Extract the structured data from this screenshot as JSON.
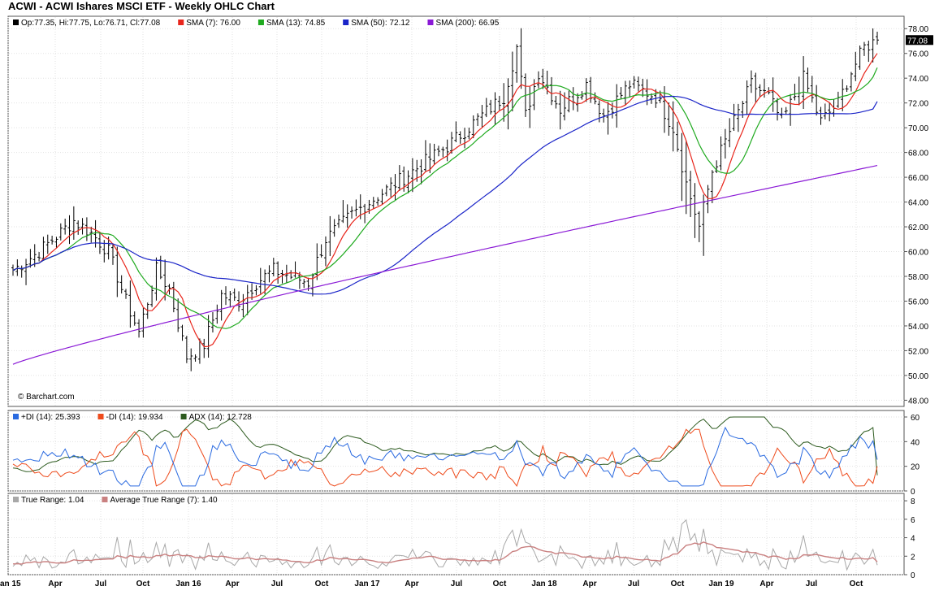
{
  "header": {
    "title": "ACWI - ACWI Ishares MSCI ETF - Weekly OHLC Chart"
  },
  "watermark": "© Barchart.com",
  "colors": {
    "ohlc": "#000000",
    "sma7": "#e8251b",
    "sma13": "#1faa1f",
    "sma50": "#1a24c8",
    "sma200": "#8a19d6",
    "pdi": "#2a6ae0",
    "mdi": "#ee4b1c",
    "adx": "#2c5a1e",
    "tr": "#a8a8a8",
    "atr": "#c98080"
  },
  "legend_main": [
    {
      "label": "Op:77.35, Hi:77.75, Lo:76.71, Cl:77.08",
      "color": "#000000"
    },
    {
      "label": "SMA (7): 76.00",
      "color": "#e8251b"
    },
    {
      "label": "SMA (13): 74.85",
      "color": "#1faa1f"
    },
    {
      "label": "SMA (50): 72.12",
      "color": "#1a24c8"
    },
    {
      "label": "SMA (200): 66.95",
      "color": "#8a19d6"
    }
  ],
  "legend_dmi": [
    {
      "label": "+DI (14): 25.393",
      "color": "#2a6ae0"
    },
    {
      "label": "-DI (14): 19.934",
      "color": "#ee4b1c"
    },
    {
      "label": "ADX (14): 12.728",
      "color": "#2c5a1e"
    }
  ],
  "legend_tr": [
    {
      "label": "True Range: 1.04",
      "color": "#a8a8a8"
    },
    {
      "label": "Average True Range (7): 1.40",
      "color": "#c98080"
    }
  ],
  "last_price_label": "77.08",
  "chart_data": {
    "type": "ohlc",
    "x_labels": [
      "Jan 15",
      "Apr",
      "Jul",
      "Oct",
      "Jan 16",
      "Apr",
      "Jul",
      "Oct",
      "Jan 17",
      "Apr",
      "Jul",
      "Oct",
      "Jan 18",
      "Apr",
      "Jul",
      "Oct",
      "Jan 19",
      "Apr",
      "Jul",
      "Oct"
    ],
    "price_axis": {
      "ticks": [
        "78.00",
        "76.00",
        "74.00",
        "72.00",
        "70.00",
        "68.00",
        "66.00",
        "64.00",
        "62.00",
        "60.00",
        "58.00",
        "56.00",
        "54.00",
        "52.00",
        "50.00",
        "48.00"
      ],
      "ylim": [
        47.5,
        79.0
      ]
    },
    "dmi_axis": {
      "ticks": [
        "60",
        "40",
        "20",
        "0"
      ],
      "ylim": [
        0,
        60
      ]
    },
    "tr_axis": {
      "ticks": [
        "8",
        "6",
        "4",
        "2",
        "0"
      ],
      "ylim": [
        0,
        8
      ]
    },
    "close_keypoints": [
      [
        0,
        58.5
      ],
      [
        6,
        60.0
      ],
      [
        14,
        62.5
      ],
      [
        18,
        61.5
      ],
      [
        22,
        60.0
      ],
      [
        26,
        56.0
      ],
      [
        29,
        53.5
      ],
      [
        33,
        58.5
      ],
      [
        36,
        57.0
      ],
      [
        40,
        51.5
      ],
      [
        44,
        52.5
      ],
      [
        48,
        56.5
      ],
      [
        52,
        56.0
      ],
      [
        56,
        57.5
      ],
      [
        60,
        58.5
      ],
      [
        64,
        58.0
      ],
      [
        68,
        57.5
      ],
      [
        72,
        61.0
      ],
      [
        78,
        63.0
      ],
      [
        84,
        64.5
      ],
      [
        88,
        65.5
      ],
      [
        94,
        67.0
      ],
      [
        100,
        68.5
      ],
      [
        108,
        71.0
      ],
      [
        113,
        72.5
      ],
      [
        116,
        76.5
      ],
      [
        118,
        71.0
      ],
      [
        121,
        74.5
      ],
      [
        126,
        71.5
      ],
      [
        132,
        73.5
      ],
      [
        136,
        71.0
      ],
      [
        142,
        73.5
      ],
      [
        148,
        72.5
      ],
      [
        152,
        70.0
      ],
      [
        155,
        65.5
      ],
      [
        158,
        62.0
      ],
      [
        161,
        66.5
      ],
      [
        166,
        70.5
      ],
      [
        170,
        73.5
      ],
      [
        174,
        72.5
      ],
      [
        177,
        70.5
      ],
      [
        182,
        74.0
      ],
      [
        186,
        70.5
      ],
      [
        190,
        72.0
      ],
      [
        193,
        74.5
      ],
      [
        196,
        76.5
      ],
      [
        199,
        77.08
      ]
    ],
    "series_last": {
      "sma7": 76.0,
      "sma13": 74.85,
      "sma50": 72.12,
      "sma200": 66.95,
      "plus_di": 25.393,
      "minus_di": 19.934,
      "adx": 12.728,
      "true_range": 1.04,
      "atr7": 1.4
    }
  }
}
